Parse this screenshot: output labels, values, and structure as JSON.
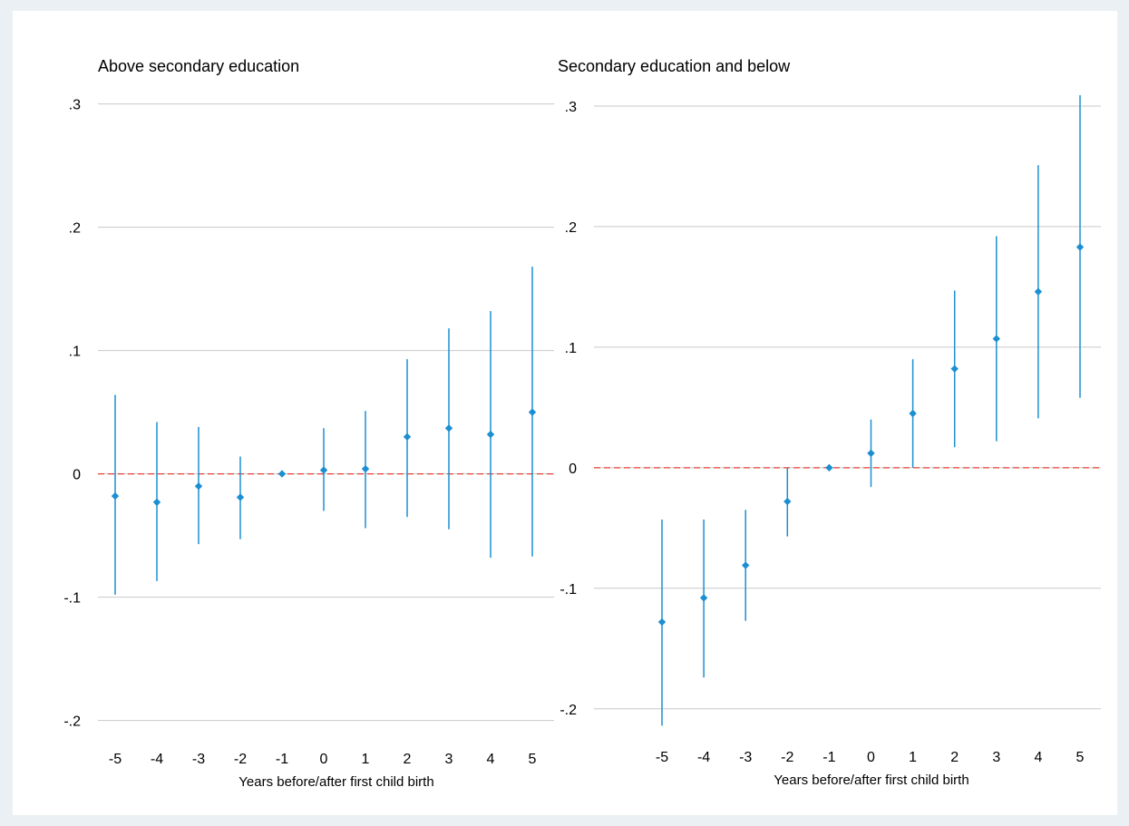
{
  "chart_data": [
    {
      "type": "scatter",
      "title": "Above secondary education",
      "xlabel": "Years before/after first child birth",
      "ylabel": "",
      "x": [
        -5,
        -4,
        -3,
        -2,
        -1,
        0,
        1,
        2,
        3,
        4,
        5
      ],
      "xticks": [
        -5,
        -4,
        -3,
        -2,
        -1,
        0,
        1,
        2,
        3,
        4,
        5
      ],
      "xtick_labels": [
        "-5",
        "-4",
        "-3",
        "-2",
        "-1",
        "0",
        "1",
        "2",
        "3",
        "4",
        "5"
      ],
      "y": [
        -0.018,
        -0.023,
        -0.01,
        -0.019,
        0.0,
        0.003,
        0.004,
        0.03,
        0.037,
        0.032,
        0.05
      ],
      "ci_low": [
        -0.098,
        -0.087,
        -0.057,
        -0.053,
        0.0,
        -0.03,
        -0.044,
        -0.035,
        -0.045,
        -0.068,
        -0.067
      ],
      "ci_high": [
        0.064,
        0.042,
        0.038,
        0.014,
        0.0,
        0.037,
        0.051,
        0.093,
        0.118,
        0.132,
        0.168
      ],
      "yticks": [
        -0.2,
        -0.1,
        0,
        0.1,
        0.2,
        0.3
      ],
      "ytick_labels": [
        "-.2",
        "-.1",
        "0",
        ".1",
        ".2",
        ".3"
      ],
      "xlim": [
        -5.5,
        5.5
      ],
      "ylim": [
        -0.215,
        0.31
      ],
      "grid": "horizontal",
      "reference_line": {
        "y": 0,
        "color": "#e8423a",
        "style": "dashed"
      },
      "marker": "diamond",
      "color": "#1c8fd2"
    },
    {
      "type": "scatter",
      "title": "Secondary education and below",
      "xlabel": "Years before/after first child birth",
      "ylabel": "",
      "x": [
        -5,
        -4,
        -3,
        -2,
        -1,
        0,
        1,
        2,
        3,
        4,
        5
      ],
      "xticks": [
        -5,
        -4,
        -3,
        -2,
        -1,
        0,
        1,
        2,
        3,
        4,
        5
      ],
      "xtick_labels": [
        "-5",
        "-4",
        "-3",
        "-2",
        "-1",
        "0",
        "1",
        "2",
        "3",
        "4",
        "5"
      ],
      "y": [
        -0.128,
        -0.108,
        -0.081,
        -0.028,
        0.0,
        0.012,
        0.045,
        0.082,
        0.107,
        0.146,
        0.183
      ],
      "ci_low": [
        -0.214,
        -0.174,
        -0.127,
        -0.057,
        0.0,
        -0.016,
        0.0,
        0.017,
        0.022,
        0.041,
        0.058
      ],
      "ci_high": [
        -0.043,
        -0.043,
        -0.035,
        0.0,
        0.0,
        0.04,
        0.09,
        0.147,
        0.192,
        0.251,
        0.309
      ],
      "yticks": [
        -0.2,
        -0.1,
        0,
        0.1,
        0.2,
        0.3
      ],
      "ytick_labels": [
        "-.2",
        "-.1",
        "0",
        ".1",
        ".2",
        ".3"
      ],
      "xlim": [
        -5.5,
        5.5
      ],
      "ylim": [
        -0.225,
        0.312
      ],
      "grid": "horizontal",
      "reference_line": {
        "y": 0,
        "color": "#e8423a",
        "style": "dashed"
      },
      "marker": "diamond",
      "color": "#1c8fd2"
    }
  ]
}
